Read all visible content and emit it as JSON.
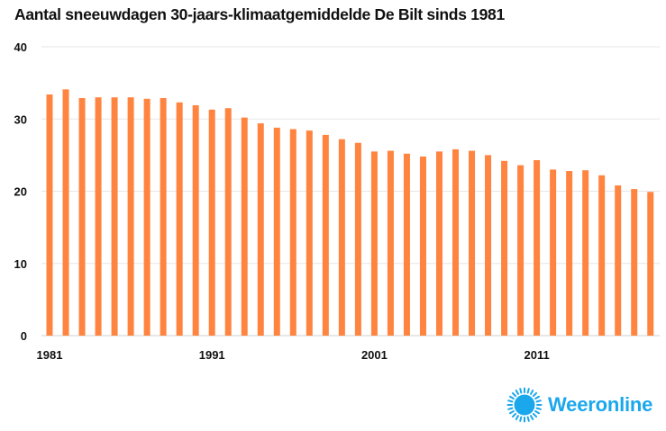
{
  "chart_data": {
    "type": "bar",
    "title": "Aantal sneeuwdagen 30-jaars-klimaatgemiddelde De Bilt sinds 1981",
    "xlabel": "",
    "ylabel": "",
    "ylim": [
      0,
      40
    ],
    "yticks": [
      "0",
      "10",
      "20",
      "30",
      "40"
    ],
    "xtick_labels": [
      "1981",
      "1991",
      "2001",
      "2011"
    ],
    "categories": [
      "1981",
      "1982",
      "1983",
      "1984",
      "1985",
      "1986",
      "1987",
      "1988",
      "1989",
      "1990",
      "1991",
      "1992",
      "1993",
      "1994",
      "1995",
      "1996",
      "1997",
      "1998",
      "1999",
      "2000",
      "2001",
      "2002",
      "2003",
      "2004",
      "2005",
      "2006",
      "2007",
      "2008",
      "2009",
      "2010",
      "2011",
      "2012",
      "2013",
      "2014",
      "2015",
      "2016",
      "2017",
      "2018"
    ],
    "values": [
      33.4,
      34.1,
      32.9,
      33.0,
      33.0,
      33.0,
      32.8,
      32.9,
      32.3,
      31.9,
      31.3,
      31.5,
      30.2,
      29.4,
      28.8,
      28.6,
      28.4,
      27.8,
      27.2,
      26.7,
      25.5,
      25.6,
      25.2,
      24.8,
      25.5,
      25.8,
      25.6,
      25.0,
      24.2,
      23.6,
      24.3,
      23.0,
      22.8,
      22.9,
      22.2,
      20.8,
      20.3,
      19.9
    ],
    "bar_color": "#ff8440",
    "grid": true,
    "legend": "none"
  },
  "branding": {
    "logo_text": "Weeronline",
    "logo_icon": "sun-icon",
    "logo_color": "#1aa7ec"
  }
}
